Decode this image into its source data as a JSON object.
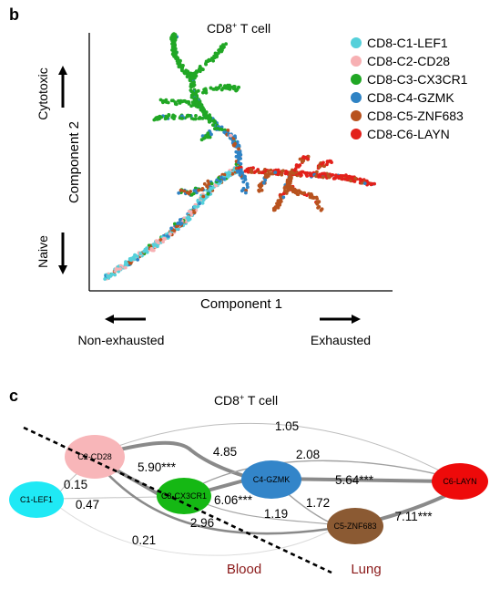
{
  "panel_b": {
    "letter": "b",
    "title": "CD8",
    "title_sup": "+",
    "title_rest": " T cell",
    "xlabel": "Component 1",
    "ylabel": "Component 2",
    "y_top_caption": "Cytotoxic",
    "y_bottom_caption": "Naive",
    "x_left_caption": "Non-exhausted",
    "x_right_caption": "Exhausted",
    "legend": [
      {
        "label": "CD8-C1-LEF1",
        "color": "#55d0da"
      },
      {
        "label": "CD8-C2-CD28",
        "color": "#f7b0b3"
      },
      {
        "label": "CD8-C3-CX3CR1",
        "color": "#21a725"
      },
      {
        "label": "CD8-C4-GZMK",
        "color": "#2f83c4"
      },
      {
        "label": "CD8-C5-ZNF683",
        "color": "#b8531f"
      },
      {
        "label": "CD8-C6-LAYN",
        "color": "#e3201b"
      }
    ]
  },
  "panel_c": {
    "letter": "c",
    "title": "CD8",
    "title_sup": "+",
    "title_rest": " T cell",
    "nodes": [
      {
        "label": "C1-LEF1",
        "color": "#1fe9f5"
      },
      {
        "label": "C2-CD28",
        "color": "#f8b6b9"
      },
      {
        "label": "C3-CX3CR1",
        "color": "#15b814"
      },
      {
        "label": "C4-GZMK",
        "color": "#3385c9"
      },
      {
        "label": "C5-ZNF683",
        "color": "#8b5a33"
      },
      {
        "label": "C6-LAYN",
        "color": "#ee0a0a"
      }
    ],
    "edges": [
      {
        "from": "C2-CD28",
        "to": "C6-LAYN",
        "label": "1.05"
      },
      {
        "from": "C2-CD28",
        "to": "C4-GZMK",
        "label": "4.85"
      },
      {
        "from": "C2-CD28",
        "to": "C3-CX3CR1",
        "label": "5.90***"
      },
      {
        "from": "C3-CX3CR1",
        "to": "C6-LAYN",
        "label": "2.08"
      },
      {
        "from": "C4-GZMK",
        "to": "C6-LAYN",
        "label": "5.64***"
      },
      {
        "from": "C1-LEF1",
        "to": "C2-CD28",
        "label": "0.15"
      },
      {
        "from": "C1-LEF1",
        "to": "C3-CX3CR1",
        "label": "0.47"
      },
      {
        "from": "C3-CX3CR1",
        "to": "C4-GZMK",
        "label": "6.06***"
      },
      {
        "from": "C4-GZMK",
        "to": "C5-ZNF683",
        "label": "1.72"
      },
      {
        "from": "C3-CX3CR1",
        "to": "C5-ZNF683",
        "label": "1.19"
      },
      {
        "from": "C2-CD28",
        "to": "C5-ZNF683",
        "label": "2.96"
      },
      {
        "from": "C1-LEF1",
        "to": "C5-ZNF683",
        "label": "0.21"
      },
      {
        "from": "C5-ZNF683",
        "to": "C6-LAYN",
        "label": "7.11***"
      }
    ],
    "region_left": "Blood",
    "region_right": "Lung"
  }
}
